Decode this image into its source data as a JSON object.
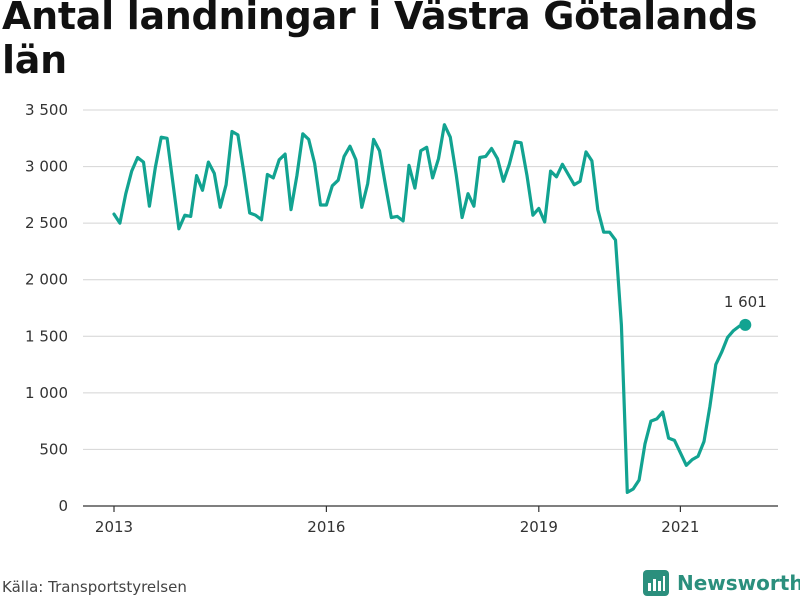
{
  "title": "Antal landningar i Västra Götalands län",
  "source": "Källa: Transportstyrelsen",
  "brand": "Newsworthy",
  "colors": {
    "line": "#12a391",
    "grid": "#d4d4d4",
    "axis": "#333333",
    "brand": "#2b8f7d"
  },
  "chart_data": {
    "type": "line",
    "title": "Antal landningar i Västra Götalands län",
    "xlabel": "",
    "ylabel": "",
    "ylim": [
      0,
      3500
    ],
    "grid": "horizontal",
    "yticks": [
      0,
      500,
      1000,
      1500,
      2000,
      2500,
      3000,
      3500
    ],
    "ytick_labels": [
      "0",
      "500",
      "1 000",
      "1 500",
      "2 000",
      "2 500",
      "3 000",
      "3 500"
    ],
    "xticks": [
      {
        "label": "2013",
        "index": 0
      },
      {
        "label": "2016",
        "index": 36
      },
      {
        "label": "2019",
        "index": 72
      },
      {
        "label": "2021",
        "index": 96
      }
    ],
    "start_month": "2013-01",
    "series": [
      {
        "values": [
          2580,
          2500,
          2760,
          2960,
          3080,
          3040,
          2650,
          2990,
          3260,
          3250,
          2850,
          2450,
          2570,
          2560,
          2920,
          2790,
          3040,
          2940,
          2640,
          2840,
          3310,
          3280,
          2950,
          2590,
          2570,
          2530,
          2930,
          2900,
          3060,
          3110,
          2620,
          2920,
          3290,
          3240,
          3030,
          2660,
          2660,
          2830,
          2880,
          3090,
          3180,
          3060,
          2640,
          2850,
          3240,
          3140,
          2840,
          2550,
          2560,
          2520,
          3010,
          2810,
          3140,
          3170,
          2900,
          3070,
          3370,
          3260,
          2930,
          2550,
          2760,
          2650,
          3080,
          3090,
          3160,
          3070,
          2870,
          3020,
          3220,
          3210,
          2920,
          2570,
          2630,
          2510,
          2960,
          2910,
          3020,
          2930,
          2840,
          2870,
          3130,
          3050,
          2620,
          2420,
          2420,
          2350,
          1600,
          120,
          150,
          230,
          550,
          750,
          770,
          830,
          600,
          580,
          470,
          360,
          410,
          440,
          570,
          880,
          1250,
          1360,
          1490,
          1550,
          1590,
          1601
        ]
      }
    ],
    "last_label": "1 601"
  }
}
